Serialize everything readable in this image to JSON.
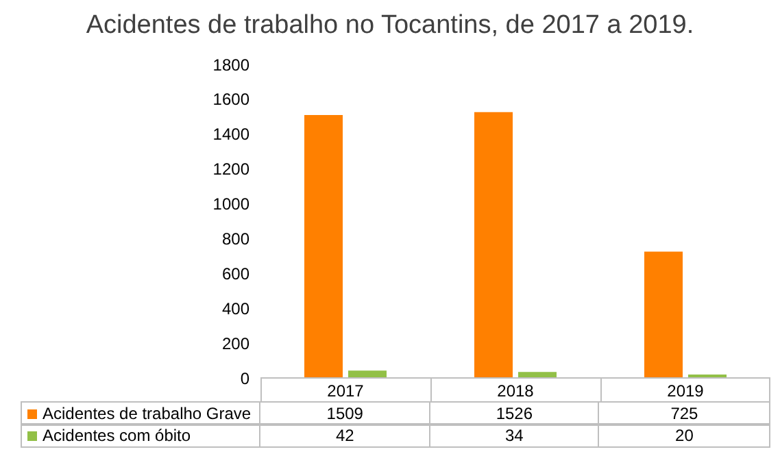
{
  "chart_data": {
    "type": "bar",
    "title": "Acidentes de trabalho no Tocantins, de 2017 a 2019.",
    "categories": [
      "2017",
      "2018",
      "2019"
    ],
    "series": [
      {
        "name": "Acidentes de trabalho Grave",
        "color": "#ff8000",
        "values": [
          1509,
          1526,
          725
        ]
      },
      {
        "name": "Acidentes com óbito",
        "color": "#92c047",
        "values": [
          42,
          34,
          20
        ]
      }
    ],
    "ylim": [
      0,
      1800
    ],
    "yticks": [
      0,
      200,
      400,
      600,
      800,
      1000,
      1200,
      1400,
      1600,
      1800
    ],
    "grid": false,
    "legend": "bottom",
    "data_labels": true
  }
}
